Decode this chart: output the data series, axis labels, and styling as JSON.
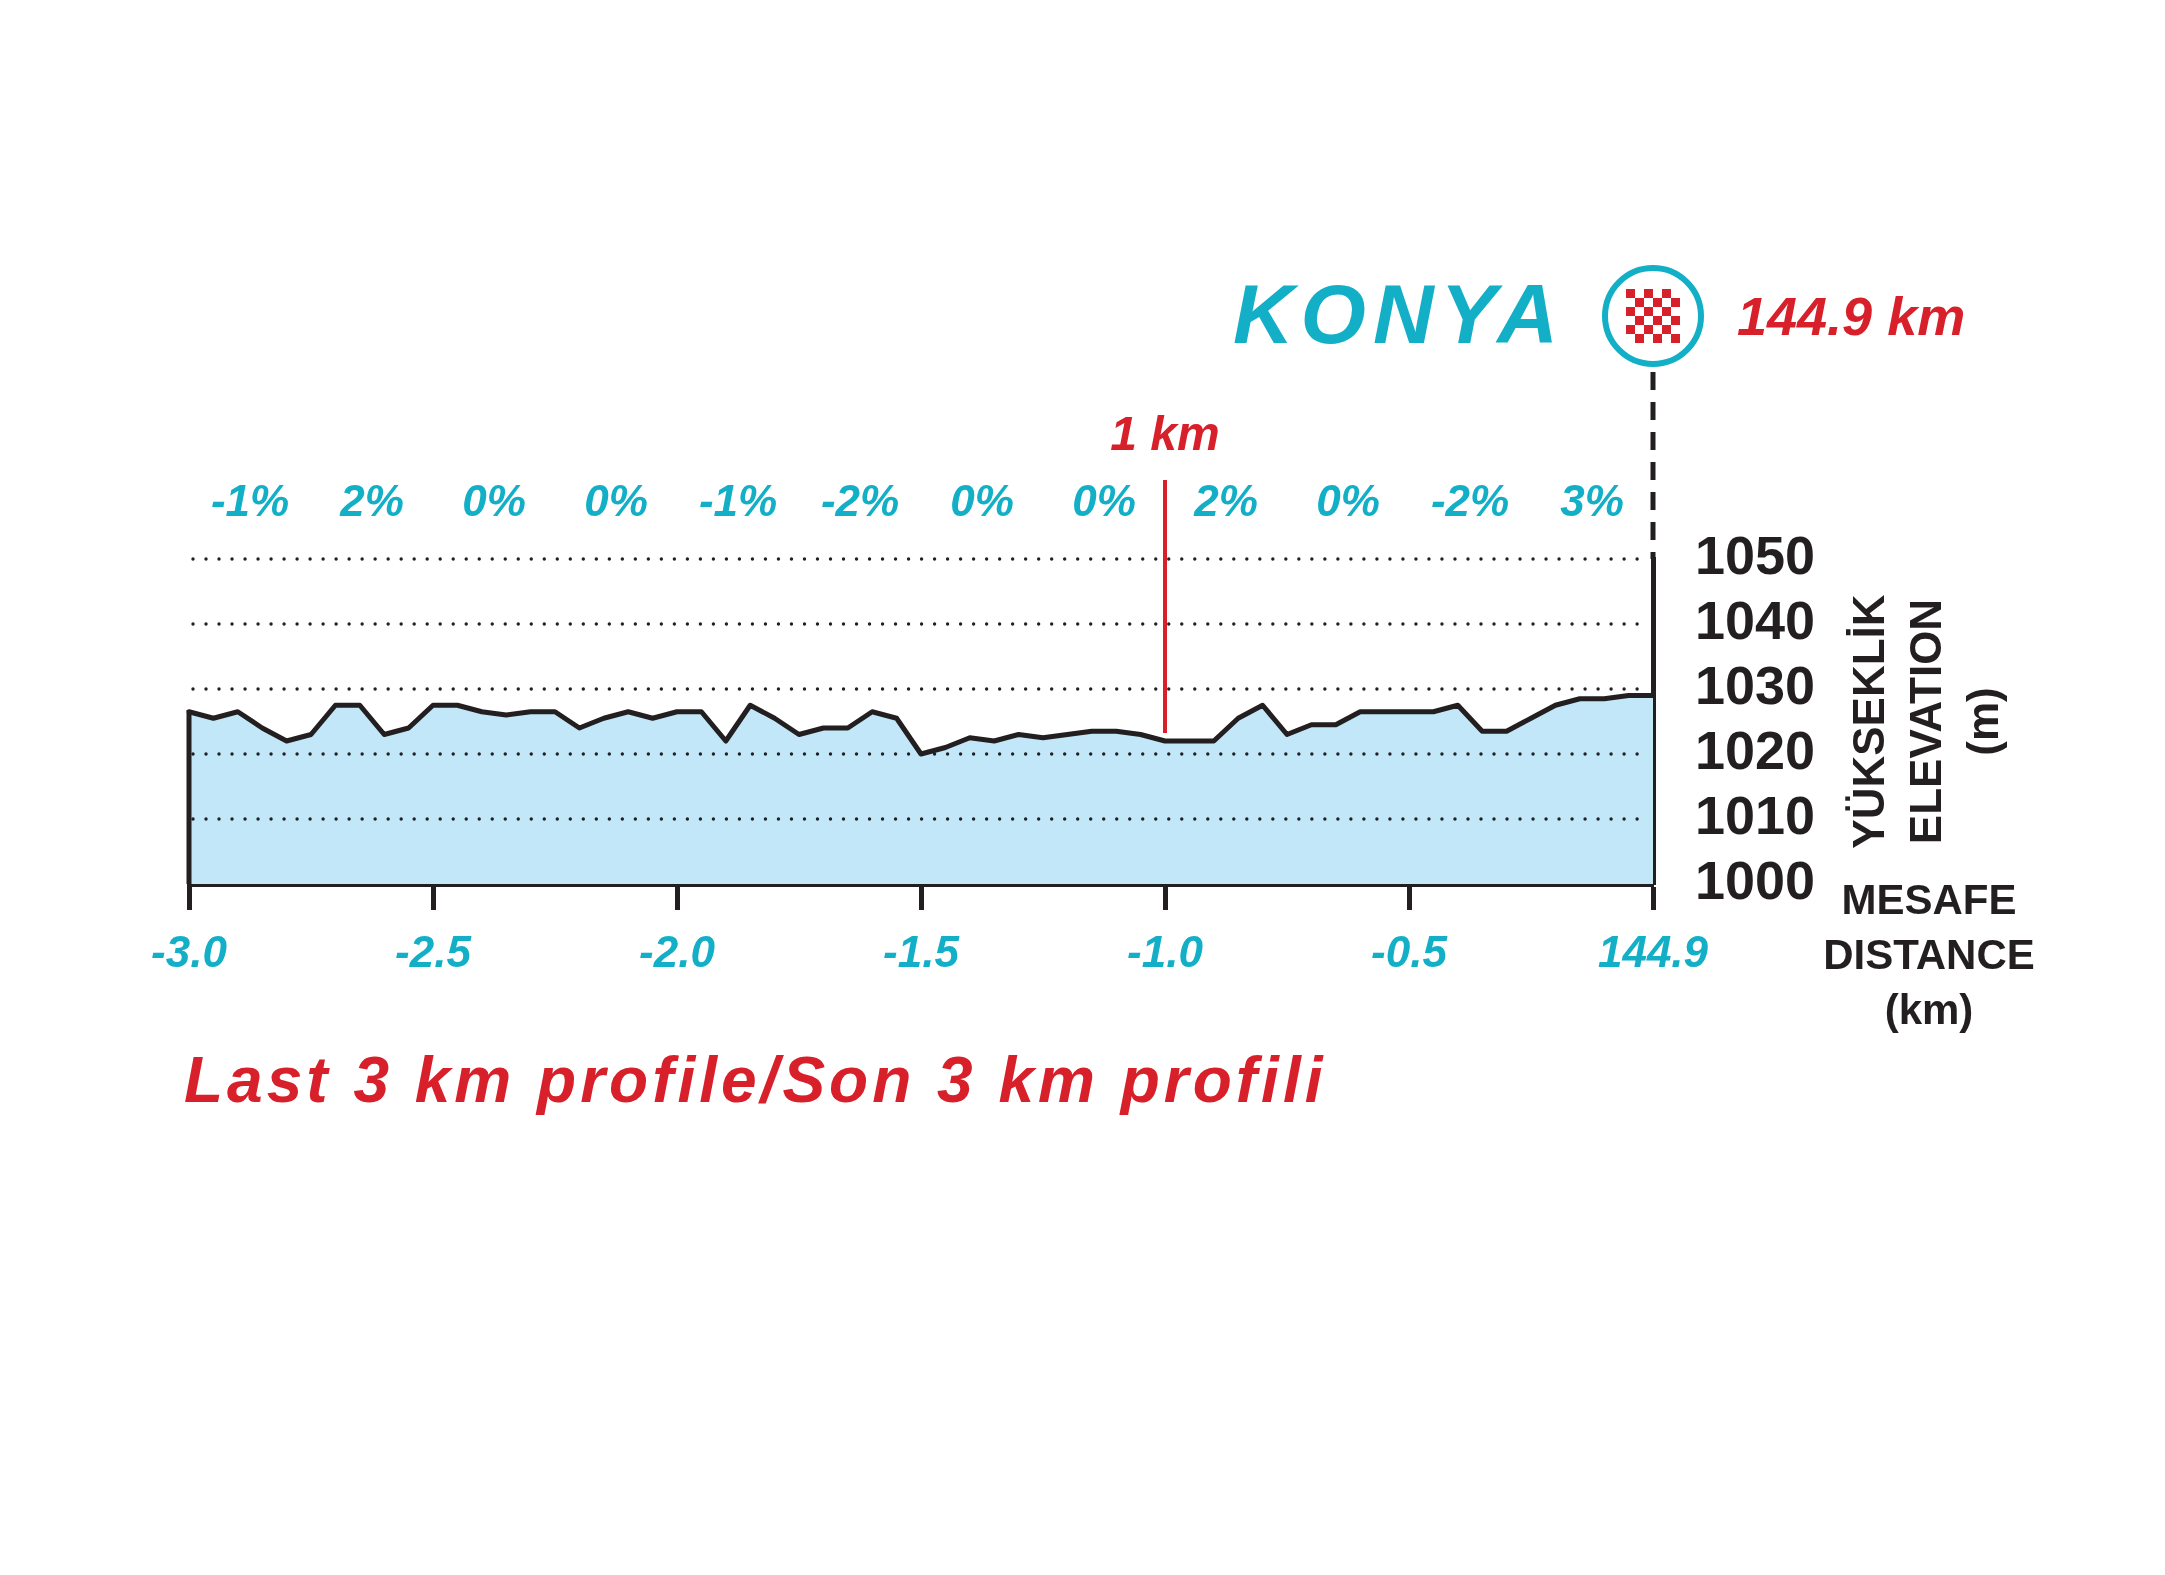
{
  "chart_data": {
    "type": "area",
    "title": "Last 3 km profile/Son 3 km profili",
    "xlabel": "MESAFE DISTANCE (km)",
    "ylabel": "YÜKSEKLİK ELEVATION (m)",
    "categories": [
      "-3.0",
      null,
      null,
      null,
      null,
      null,
      null,
      null,
      null,
      null,
      "-2.5",
      null,
      null,
      null,
      null,
      null,
      null,
      null,
      null,
      null,
      "-2.0",
      null,
      null,
      null,
      null,
      null,
      null,
      null,
      null,
      null,
      "-1.5",
      null,
      null,
      null,
      null,
      null,
      null,
      null,
      null,
      null,
      "-1.0",
      null,
      null,
      null,
      null,
      null,
      null,
      null,
      null,
      null,
      "-0.5",
      null,
      null,
      null,
      null,
      null,
      null,
      null,
      null,
      null,
      "144.9"
    ],
    "values": [
      1026.5,
      1025.5,
      1026.5,
      1024,
      1022,
      1023,
      1027.5,
      1027.5,
      1023,
      1024,
      1027.5,
      1027.5,
      1026.5,
      1026,
      1026.5,
      1026.5,
      1024,
      1025.5,
      1026.5,
      1025.5,
      1026.5,
      1026.5,
      1022,
      1027.5,
      1025.5,
      1023,
      1024,
      1024,
      1026.5,
      1025.5,
      1020,
      1021,
      1022.5,
      1022,
      1023,
      1022.5,
      1023,
      1023.5,
      1023.5,
      1023,
      1022,
      1022,
      1022,
      1025.5,
      1027.5,
      1023,
      1024.5,
      1024.5,
      1026.5,
      1026.5,
      1026.5,
      1026.5,
      1027.5,
      1023.5,
      1023.5,
      1025.5,
      1027.5,
      1028.5,
      1028.5,
      1029,
      1029
    ],
    "color": "#c2e7f8",
    "ylim": [
      1000,
      1050
    ],
    "yticks": [
      1000,
      1010,
      1020,
      1030,
      1040,
      1050
    ],
    "grid": "y",
    "ref_lines": [
      {
        "axis": "x",
        "value": "-1.0",
        "label": "1 km",
        "color": "#d7202a"
      }
    ],
    "annotations": [
      "KONYA",
      "144.9 km",
      "-1%",
      "2%",
      "0%",
      "0%",
      "-1%",
      "-2%",
      "0%",
      "0%",
      "2%",
      "0%",
      "-2%",
      "3%"
    ]
  }
}
